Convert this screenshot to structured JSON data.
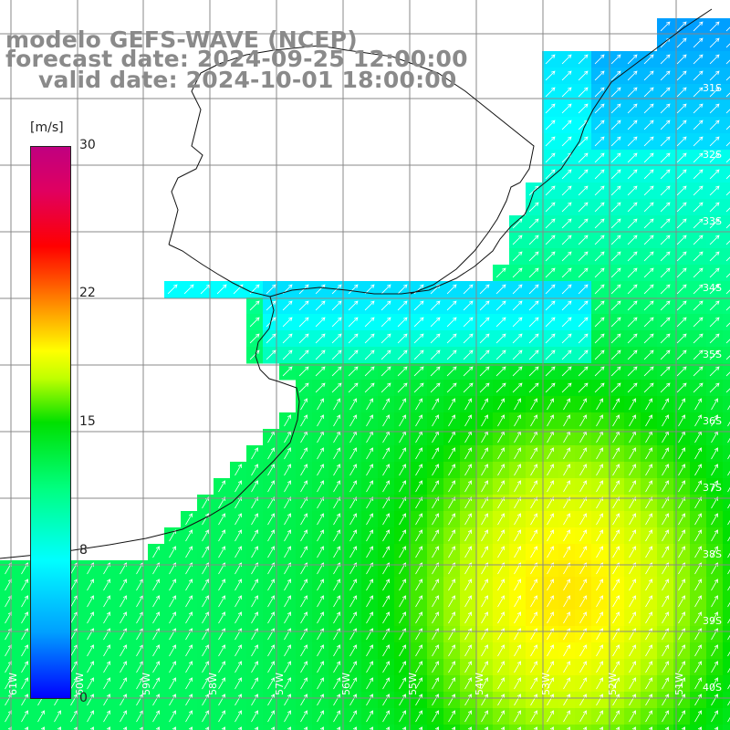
{
  "title": {
    "model": "modelo GEFS-WAVE (NCEP)",
    "forecast": "forecast date: 2024-09-25 12:00:00",
    "valid": "valid date: 2024-10-01 18:00:00"
  },
  "colorbar": {
    "unit": "[m/s]",
    "min": 0,
    "max": 30,
    "ticks": [
      "30",
      "22",
      "15",
      "8",
      "0"
    ],
    "tick_values": [
      30,
      22,
      15,
      8,
      0
    ],
    "colors": [
      "#0000ff",
      "#00ffff",
      "#00e000",
      "#ffff00",
      "#ff0000",
      "#c00080"
    ]
  },
  "map": {
    "lon_range": [
      -61.3,
      -50.3
    ],
    "lat_range": [
      -41.5,
      -30.5
    ],
    "lat_labels": [
      "31S",
      "32S",
      "33S",
      "34S",
      "35S",
      "36S",
      "37S",
      "38S",
      "39S",
      "40S",
      "41S"
    ],
    "lon_labels": [
      "61W",
      "60W",
      "59W",
      "58W",
      "57W",
      "56W",
      "55W",
      "54W",
      "53W",
      "52W",
      "51W"
    ],
    "land_color": "#ffffff",
    "grid_color": "#888888",
    "arrow_color": "#ffffff",
    "wind_direction": "from SW"
  }
}
